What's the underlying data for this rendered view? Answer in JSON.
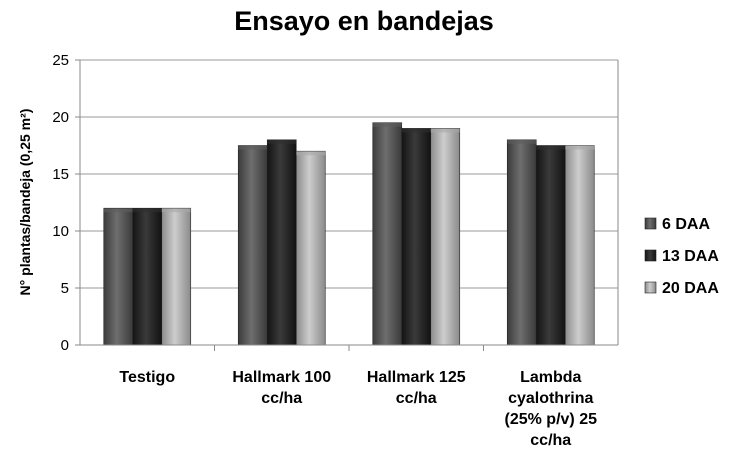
{
  "chart_data": {
    "type": "bar",
    "title": "Ensayo en bandejas",
    "xlabel": "",
    "ylabel": "N° plantas/bandeja (0,25 m²)",
    "ylim": [
      0,
      25
    ],
    "yticks": [
      0,
      5,
      10,
      15,
      20,
      25
    ],
    "grid": true,
    "legend_position": "right",
    "categories": [
      [
        "Testigo"
      ],
      [
        "Hallmark 100",
        "cc/ha"
      ],
      [
        "Hallmark 125",
        "cc/ha"
      ],
      [
        "Lambda",
        "cyalothrina",
        "(25% p/v) 25",
        "cc/ha"
      ]
    ],
    "series": [
      {
        "name": "6 DAA",
        "values": [
          12,
          17.5,
          19.5,
          18
        ],
        "color": "#5e5e5e"
      },
      {
        "name": "13 DAA",
        "values": [
          12,
          18,
          19,
          17.5
        ],
        "color": "#2e2e2e"
      },
      {
        "name": "20 DAA",
        "values": [
          12,
          17,
          19,
          17.5
        ],
        "color": "#a9a9a9"
      }
    ]
  }
}
